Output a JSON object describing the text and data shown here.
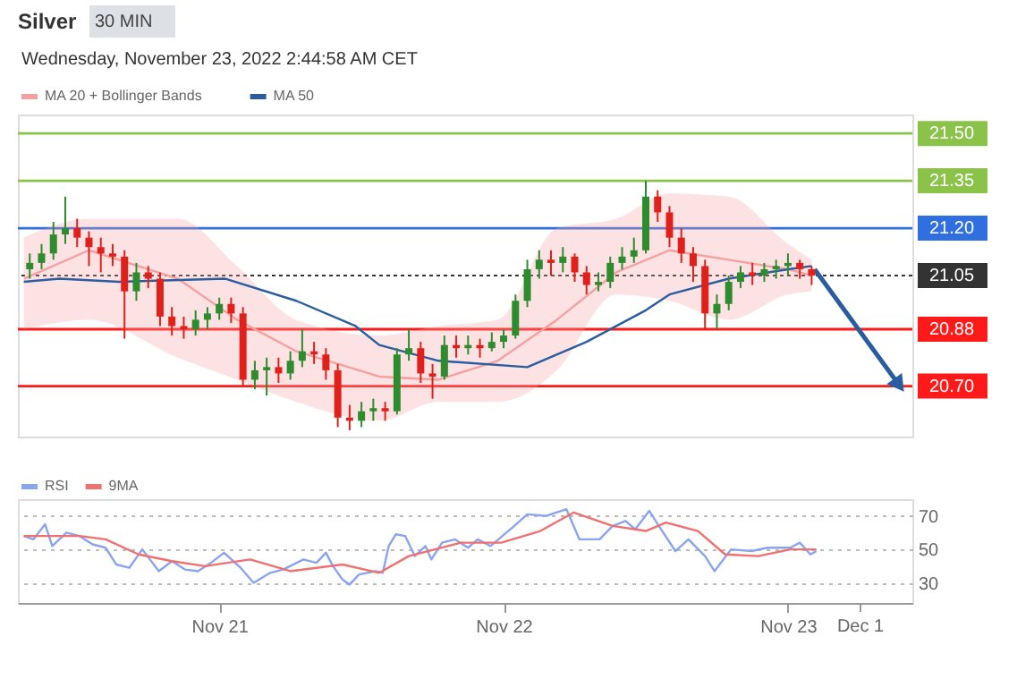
{
  "chart_data": [
    {
      "type": "candlestick",
      "title": "Silver",
      "subtitle": "Wednesday, November 23, 2022 2:44:58 AM CET",
      "annotations": [
        "30 MIN"
      ],
      "x": [
        "2022-11-20T08:00",
        "2022-11-20T09:00",
        "2022-11-20T10:00",
        "2022-11-20T11:00",
        "2022-11-20T12:00",
        "2022-11-20T13:00",
        "2022-11-20T14:00",
        "2022-11-20T15:00",
        "2022-11-20T16:00",
        "2022-11-20T17:00",
        "2022-11-20T18:00",
        "2022-11-20T19:00",
        "2022-11-20T20:00",
        "2022-11-20T21:00",
        "2022-11-20T22:00",
        "2022-11-20T23:00",
        "2022-11-21T00:00",
        "2022-11-21T01:00",
        "2022-11-21T02:00",
        "2022-11-21T03:00",
        "2022-11-21T04:00",
        "2022-11-21T05:00",
        "2022-11-21T06:00",
        "2022-11-21T07:00",
        "2022-11-21T08:00",
        "2022-11-21T09:00",
        "2022-11-21T10:00",
        "2022-11-21T11:00",
        "2022-11-21T12:00",
        "2022-11-21T13:00",
        "2022-11-21T14:00",
        "2022-11-21T15:00",
        "2022-11-21T16:00",
        "2022-11-21T17:00",
        "2022-11-21T18:00",
        "2022-11-21T19:00",
        "2022-11-21T20:00",
        "2022-11-21T21:00",
        "2022-11-21T22:00",
        "2022-11-21T23:00",
        "2022-11-22T00:00",
        "2022-11-22T01:00",
        "2022-11-22T02:00",
        "2022-11-22T03:00",
        "2022-11-22T04:00",
        "2022-11-22T05:00",
        "2022-11-22T06:00",
        "2022-11-22T07:00",
        "2022-11-22T08:00",
        "2022-11-22T09:00",
        "2022-11-22T10:00",
        "2022-11-22T11:00",
        "2022-11-22T12:00",
        "2022-11-22T13:00",
        "2022-11-22T14:00",
        "2022-11-22T15:00",
        "2022-11-22T16:00",
        "2022-11-22T17:00",
        "2022-11-22T18:00",
        "2022-11-22T19:00",
        "2022-11-22T20:00",
        "2022-11-22T21:00",
        "2022-11-22T22:00",
        "2022-11-22T23:00",
        "2022-11-23T00:00",
        "2022-11-23T01:00",
        "2022-11-23T02:00"
      ],
      "ohlc": [
        [
          21.07,
          21.12,
          21.04,
          21.09
        ],
        [
          21.09,
          21.15,
          21.07,
          21.12
        ],
        [
          21.12,
          21.22,
          21.1,
          21.18
        ],
        [
          21.18,
          21.3,
          21.15,
          21.2
        ],
        [
          21.2,
          21.23,
          21.14,
          21.17
        ],
        [
          21.17,
          21.19,
          21.08,
          21.14
        ],
        [
          21.14,
          21.17,
          21.06,
          21.12
        ],
        [
          21.12,
          21.15,
          21.08,
          21.11
        ],
        [
          21.11,
          21.13,
          20.85,
          21.0
        ],
        [
          21.0,
          21.09,
          20.97,
          21.06
        ],
        [
          21.06,
          21.08,
          21.01,
          21.04
        ],
        [
          21.04,
          21.06,
          20.89,
          20.92
        ],
        [
          20.92,
          20.95,
          20.86,
          20.89
        ],
        [
          20.89,
          20.92,
          20.85,
          20.88
        ],
        [
          20.88,
          20.94,
          20.86,
          20.91
        ],
        [
          20.91,
          20.95,
          20.88,
          20.93
        ],
        [
          20.93,
          20.98,
          20.91,
          20.96
        ],
        [
          20.96,
          20.98,
          20.9,
          20.93
        ],
        [
          20.93,
          20.95,
          20.7,
          20.72
        ],
        [
          20.72,
          20.78,
          20.69,
          20.75
        ],
        [
          20.75,
          20.79,
          20.67,
          20.76
        ],
        [
          20.76,
          20.79,
          20.71,
          20.74
        ],
        [
          20.74,
          20.81,
          20.72,
          20.78
        ],
        [
          20.78,
          20.88,
          20.76,
          20.81
        ],
        [
          20.81,
          20.84,
          20.77,
          20.8
        ],
        [
          20.8,
          20.82,
          20.72,
          20.75
        ],
        [
          20.75,
          20.77,
          20.57,
          20.6
        ],
        [
          20.6,
          20.64,
          20.56,
          20.59
        ],
        [
          20.59,
          20.65,
          20.57,
          20.62
        ],
        [
          20.62,
          20.66,
          20.59,
          20.63
        ],
        [
          20.63,
          20.65,
          20.59,
          20.62
        ],
        [
          20.62,
          20.82,
          20.61,
          20.8
        ],
        [
          20.8,
          20.88,
          20.78,
          20.82
        ],
        [
          20.82,
          20.84,
          20.71,
          20.74
        ],
        [
          20.74,
          20.77,
          20.66,
          20.73
        ],
        [
          20.73,
          20.86,
          20.72,
          20.83
        ],
        [
          20.83,
          20.86,
          20.79,
          20.82
        ],
        [
          20.82,
          20.86,
          20.8,
          20.83
        ],
        [
          20.83,
          20.85,
          20.79,
          20.82
        ],
        [
          20.82,
          20.87,
          20.81,
          20.84
        ],
        [
          20.84,
          20.88,
          20.82,
          20.86
        ],
        [
          20.86,
          20.99,
          20.85,
          20.97
        ],
        [
          20.97,
          21.1,
          20.95,
          21.07
        ],
        [
          21.07,
          21.13,
          21.04,
          21.1
        ],
        [
          21.1,
          21.13,
          21.05,
          21.09
        ],
        [
          21.09,
          21.14,
          21.06,
          21.11
        ],
        [
          21.11,
          21.12,
          21.03,
          21.06
        ],
        [
          21.06,
          21.08,
          20.99,
          21.02
        ],
        [
          21.02,
          21.06,
          21.0,
          21.03
        ],
        [
          21.03,
          21.11,
          21.01,
          21.09
        ],
        [
          21.09,
          21.14,
          21.07,
          21.11
        ],
        [
          21.11,
          21.17,
          21.09,
          21.13
        ],
        [
          21.13,
          21.35,
          21.12,
          21.3
        ],
        [
          21.3,
          21.32,
          21.22,
          21.25
        ],
        [
          21.25,
          21.27,
          21.14,
          21.17
        ],
        [
          21.17,
          21.2,
          21.09,
          21.12
        ],
        [
          21.12,
          21.14,
          21.03,
          21.08
        ],
        [
          21.08,
          21.1,
          20.88,
          20.93
        ],
        [
          20.93,
          20.99,
          20.88,
          20.96
        ],
        [
          20.96,
          21.05,
          20.94,
          21.03
        ],
        [
          21.03,
          21.08,
          21.01,
          21.06
        ],
        [
          21.06,
          21.09,
          21.02,
          21.05
        ],
        [
          21.05,
          21.09,
          21.03,
          21.07
        ],
        [
          21.07,
          21.1,
          21.04,
          21.08
        ],
        [
          21.08,
          21.12,
          21.05,
          21.09
        ],
        [
          21.09,
          21.1,
          21.04,
          21.07
        ],
        [
          21.07,
          21.08,
          21.02,
          21.05
        ]
      ],
      "colors": [
        "#2e8b2e",
        "#2e8b2e",
        "#2e8b2e",
        "#2e8b2e",
        "#e0201b",
        "#e0201b",
        "#e0201b",
        "#e0201b",
        "#e0201b",
        "#2e8b2e",
        "#e0201b",
        "#e0201b",
        "#e0201b",
        "#e0201b",
        "#2e8b2e",
        "#2e8b2e",
        "#2e8b2e",
        "#e0201b",
        "#e0201b",
        "#2e8b2e",
        "#2e8b2e",
        "#e0201b",
        "#2e8b2e",
        "#2e8b2e",
        "#e0201b",
        "#e0201b",
        "#e0201b",
        "#e0201b",
        "#2e8b2e",
        "#2e8b2e",
        "#e0201b",
        "#2e8b2e",
        "#2e8b2e",
        "#e0201b",
        "#e0201b",
        "#2e8b2e",
        "#e0201b",
        "#2e8b2e",
        "#e0201b",
        "#2e8b2e",
        "#2e8b2e",
        "#2e8b2e",
        "#2e8b2e",
        "#2e8b2e",
        "#e0201b",
        "#2e8b2e",
        "#e0201b",
        "#e0201b",
        "#2e8b2e",
        "#2e8b2e",
        "#2e8b2e",
        "#2e8b2e",
        "#2e8b2e",
        "#e0201b",
        "#e0201b",
        "#e0201b",
        "#e0201b",
        "#e0201b",
        "#2e8b2e",
        "#2e8b2e",
        "#2e8b2e",
        "#e0201b",
        "#2e8b2e",
        "#2e8b2e",
        "#2e8b2e",
        "#e0201b",
        "#e0201b"
      ],
      "series": [
        {
          "name": "MA 20 + Bollinger Bands",
          "type": "line",
          "color": "#f4a0a0",
          "x": [
            "2022-11-20T07:30",
            "2022-11-20T13:00",
            "2022-11-20T20:30",
            "2022-11-21T01:30",
            "2022-11-21T06:30",
            "2022-11-21T13:30",
            "2022-11-21T18:30",
            "2022-11-21T23:30",
            "2022-11-22T04:30",
            "2022-11-22T09:30",
            "2022-11-22T14:00",
            "2022-11-22T19:00",
            "2022-11-23T00:00",
            "2022-11-23T02:00"
          ],
          "values": [
            21.04,
            21.13,
            21.04,
            20.91,
            20.81,
            20.73,
            20.72,
            20.78,
            20.91,
            21.06,
            21.13,
            21.1,
            21.07,
            21.05
          ],
          "lower": [
            20.88,
            20.91,
            20.79,
            20.72,
            20.65,
            20.59,
            20.65,
            20.65,
            20.75,
            20.99,
            20.97,
            20.91,
            20.99,
            21.0
          ],
          "upper": [
            21.17,
            21.23,
            21.23,
            21.08,
            20.91,
            20.86,
            20.89,
            20.91,
            21.2,
            21.23,
            21.31,
            21.3,
            21.15,
            21.1
          ]
        },
        {
          "name": "MA 50",
          "type": "line",
          "color": "#2a5d9f",
          "x": [
            "2022-11-20T07:30",
            "2022-11-20T10:30",
            "2022-11-20T15:30",
            "2022-11-21T00:30",
            "2022-11-21T06:30",
            "2022-11-21T11:30",
            "2022-11-21T13:30",
            "2022-11-21T18:30",
            "2022-11-22T02:00",
            "2022-11-22T07:00",
            "2022-11-22T12:00",
            "2022-11-22T14:00",
            "2022-11-22T19:00",
            "2022-11-23T00:00",
            "2022-11-23T02:00"
          ],
          "values": [
            21.03,
            21.04,
            21.03,
            21.04,
            20.97,
            20.89,
            20.83,
            20.78,
            20.76,
            20.84,
            20.94,
            20.99,
            21.04,
            21.07,
            21.08
          ]
        },
        {
          "type": "line",
          "color": "#2a5d9f",
          "x": [
            "2022-11-23T02:15",
            "2022-11-23T09:15"
          ],
          "values": [
            21.07,
            20.71
          ]
        }
      ],
      "xlim": [
        "2022-11-20T07:00",
        "2022-11-23T10:30"
      ],
      "ylim": [
        20.54,
        21.56
      ],
      "tick_labels": false,
      "legend": "top left",
      "ref_lines": [
        {
          "axis": "y",
          "value": 21.5,
          "label": "21.50",
          "color": "#8bc34a",
          "line_style": "solid"
        },
        {
          "axis": "y",
          "value": 21.35,
          "label": "21.35",
          "color": "#8bc34a",
          "line_style": "solid"
        },
        {
          "axis": "y",
          "value": 21.2,
          "label": "21.20",
          "color": "#2f6fe0",
          "line_style": "solid"
        },
        {
          "axis": "y",
          "value": 21.05,
          "label": "21.05",
          "color": "#333333",
          "line_style": "dotted"
        },
        {
          "axis": "y",
          "value": 20.88,
          "label": "20.88",
          "color": "#ff1a1a",
          "line_style": "solid"
        },
        {
          "axis": "y",
          "value": 20.7,
          "label": "20.70",
          "color": "#ff1a1a",
          "line_style": "solid"
        }
      ]
    },
    {
      "type": "line",
      "series": [
        {
          "name": "RSI",
          "color": "#8aa4f0",
          "x": [
            "2022-11-20T07:30",
            "2022-11-20T08:18",
            "2022-11-20T09:18",
            "2022-11-20T09:54",
            "2022-11-20T11:06",
            "2022-11-20T12:12",
            "2022-11-20T13:18",
            "2022-11-20T14:24",
            "2022-11-20T15:18",
            "2022-11-20T16:24",
            "2022-11-20T17:30",
            "2022-11-20T18:54",
            "2022-11-20T20:00",
            "2022-11-20T21:06",
            "2022-11-20T22:12",
            "2022-11-20T23:18",
            "2022-11-21T00:24",
            "2022-11-21T01:48",
            "2022-11-21T02:54",
            "2022-11-21T04:18",
            "2022-11-21T05:24",
            "2022-11-21T07:06",
            "2022-11-21T08:12",
            "2022-11-21T09:00",
            "2022-11-21T09:36",
            "2022-11-21T10:24",
            "2022-11-21T11:00",
            "2022-11-21T11:48",
            "2022-11-21T13:12",
            "2022-11-21T13:48",
            "2022-11-21T14:18",
            "2022-11-21T14:54",
            "2022-11-21T15:42",
            "2022-11-21T16:30",
            "2022-11-21T17:24",
            "2022-11-21T17:54",
            "2022-11-21T18:48",
            "2022-11-21T19:54",
            "2022-11-21T21:00",
            "2022-11-21T21:48",
            "2022-11-21T22:54",
            "2022-11-22T00:54",
            "2022-11-22T02:00",
            "2022-11-22T03:36",
            "2022-11-22T05:18",
            "2022-11-22T06:24",
            "2022-11-22T08:06",
            "2022-11-22T09:12",
            "2022-11-22T10:18",
            "2022-11-22T11:06",
            "2022-11-22T12:18",
            "2022-11-22T13:06",
            "2022-11-22T14:30",
            "2022-11-22T15:36",
            "2022-11-22T17:00",
            "2022-11-22T17:48",
            "2022-11-22T19:12",
            "2022-11-22T20:54",
            "2022-11-22T22:18",
            "2022-11-23T00:12",
            "2022-11-23T01:00",
            "2022-11-23T01:54",
            "2022-11-23T02:24"
          ],
          "values": [
            58,
            56,
            65,
            52,
            60,
            58,
            53,
            51,
            41,
            39,
            50,
            37,
            43,
            38,
            37,
            42,
            48,
            39,
            30,
            36,
            38,
            44,
            42,
            48,
            40,
            32,
            29,
            35,
            37,
            36,
            52,
            59,
            58,
            46,
            52,
            44,
            54,
            56,
            51,
            56,
            52,
            64,
            71,
            70,
            74,
            56,
            56,
            64,
            67,
            62,
            73,
            64,
            49,
            56,
            46,
            37,
            50,
            49,
            51,
            51,
            54,
            47,
            49
          ]
        },
        {
          "name": "9MA",
          "color": "#f07070",
          "x": [
            "2022-11-20T07:30",
            "2022-11-20T12:12",
            "2022-11-20T14:24",
            "2022-11-20T17:12",
            "2022-11-20T20:00",
            "2022-11-20T22:48",
            "2022-11-21T02:36",
            "2022-11-21T06:00",
            "2022-11-21T10:24",
            "2022-11-21T13:30",
            "2022-11-21T16:00",
            "2022-11-21T20:24",
            "2022-11-21T23:48",
            "2022-11-22T03:06",
            "2022-11-22T05:54",
            "2022-11-22T09:12",
            "2022-11-22T12:00",
            "2022-11-22T13:42",
            "2022-11-22T16:24",
            "2022-11-22T18:42",
            "2022-11-22T21:30",
            "2022-11-23T00:12",
            "2022-11-23T02:24"
          ],
          "values": [
            58,
            58,
            56,
            47,
            43,
            40,
            44,
            37,
            41,
            36,
            46,
            54,
            54,
            61,
            72,
            64,
            61,
            66,
            61,
            47,
            46,
            50,
            50
          ]
        }
      ],
      "xlim": [
        "2022-11-20T07:00",
        "2022-11-23T10:30"
      ],
      "ylim": [
        18,
        80
      ],
      "yticks": [
        30,
        50,
        70
      ],
      "xticks": [
        {
          "value": "2022-11-21",
          "label": "Nov 21"
        },
        {
          "value": "2022-11-22",
          "label": "Nov 22"
        },
        {
          "value": "2022-11-23",
          "label": "Nov 23"
        }
      ],
      "annotations": [
        "Dec 1"
      ],
      "grid": "y",
      "legend": "top left"
    }
  ]
}
